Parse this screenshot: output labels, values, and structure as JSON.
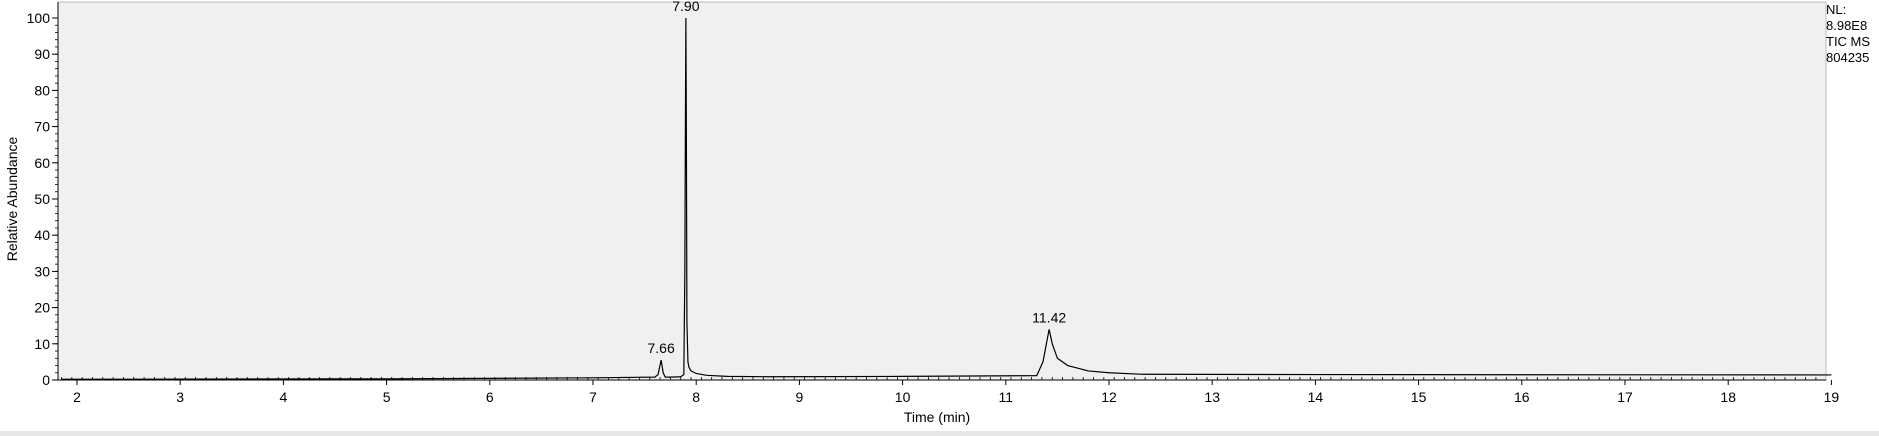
{
  "info": {
    "nl_label": "NL:",
    "nl_value": "8.98E8",
    "scan_filter": "TIC  MS",
    "file_name": "804235"
  },
  "colors": {
    "plot_background": "#f0f0f0",
    "trace": "#000000",
    "axis": "#000000"
  },
  "chart_data": {
    "type": "line",
    "title": "",
    "xlabel": "Time (min)",
    "ylabel": "Relative Abundance",
    "xlim": [
      1.85,
      19.0
    ],
    "ylim": [
      0,
      100
    ],
    "x_ticks": [
      2,
      3,
      4,
      5,
      6,
      7,
      8,
      9,
      10,
      11,
      12,
      13,
      14,
      15,
      16,
      17,
      18,
      19
    ],
    "y_ticks": [
      0,
      10,
      20,
      30,
      40,
      50,
      60,
      70,
      80,
      90,
      100
    ],
    "grid": false,
    "series": [
      {
        "x": [
          1.85,
          4.5,
          5.0,
          7.0,
          7.6,
          7.63,
          7.66,
          7.68,
          7.7,
          7.75,
          7.85,
          7.88,
          7.89,
          7.895,
          7.9,
          7.905,
          7.91,
          7.92,
          7.93,
          7.95,
          8.0,
          8.1,
          8.3,
          8.7,
          10.0,
          11.3,
          11.36,
          11.4,
          11.42,
          11.45,
          11.5,
          11.6,
          11.8,
          12.0,
          12.3,
          14.0,
          19.0
        ],
        "y": [
          0.2,
          0.3,
          0.3,
          0.6,
          0.8,
          1.5,
          5.5,
          2.0,
          0.8,
          0.8,
          0.9,
          1.5,
          30,
          67,
          100,
          66,
          16,
          5,
          3.5,
          2.5,
          1.8,
          1.3,
          1.0,
          0.9,
          1.0,
          1.2,
          5,
          11,
          14,
          10,
          6,
          4,
          2.5,
          2.0,
          1.6,
          1.5,
          1.4
        ]
      }
    ],
    "peak_labels": [
      {
        "x": 7.66,
        "y": 5.5,
        "text": "7.66"
      },
      {
        "x": 7.9,
        "y": 100,
        "text": "7.90"
      },
      {
        "x": 11.42,
        "y": 14,
        "text": "11.42"
      }
    ]
  }
}
